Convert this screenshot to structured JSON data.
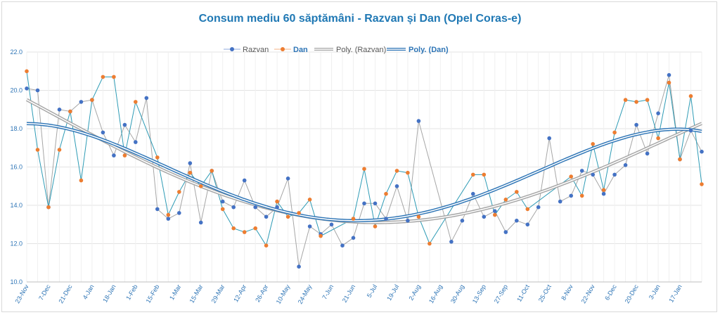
{
  "chart_data": {
    "type": "line",
    "title": "Consum mediu 60 săptămâni - Razvan și Dan (Opel Coras-e)",
    "ylim": [
      10,
      22
    ],
    "yticks": [
      "10.0",
      "12.0",
      "14.0",
      "16.0",
      "18.0",
      "20.0",
      "22.0"
    ],
    "grid": true,
    "legend_position": "top",
    "legend": {
      "razvan": "Razvan",
      "dan": "Dan",
      "poly_razvan": "Poly. (Razvan)",
      "poly_dan": "Poly. (Dan)"
    },
    "x_labels": [
      "23-Nov",
      "7-Dec",
      "21-Dec",
      "4-Jan",
      "18-Jan",
      "1-Feb",
      "15-Feb",
      "1-Mar",
      "15-Mar",
      "29-Mar",
      "12-Apr",
      "26-Apr",
      "10-May",
      "24-May",
      "7-Jun",
      "21-Jun",
      "5-Jul",
      "19-Jul",
      "2-Aug",
      "16-Aug",
      "30-Aug",
      "13-Sep",
      "27-Sep",
      "11-Oct",
      "25-Oct",
      "8-Nov",
      "22-Nov",
      "6-Dec",
      "20-Dec",
      "3-Jan",
      "17-Jan"
    ],
    "colors": {
      "razvan": "#4472c4",
      "dan": "#ed7d31",
      "razvan_line": "#a6a6a6",
      "dan_line": "#2e9bb5",
      "poly_dan": "#2e75b6",
      "poly_razvan": "#bfbfbf"
    },
    "series": [
      {
        "name": "Razvan",
        "values": [
          20.1,
          20.0,
          13.9,
          19.0,
          18.9,
          19.4,
          19.5,
          17.8,
          16.6,
          18.2,
          17.3,
          19.6,
          13.8,
          13.3,
          13.6,
          16.2,
          13.1,
          15.8,
          14.2,
          13.9,
          15.3,
          13.9,
          13.4,
          13.9,
          15.4,
          10.8,
          12.9,
          12.5,
          13.0,
          11.9,
          12.3,
          14.1,
          14.1,
          13.3,
          15.0,
          13.2,
          18.4,
          null,
          null,
          12.1,
          13.2,
          14.6,
          13.4,
          13.7,
          12.6,
          13.2,
          13.0,
          13.9,
          17.5,
          14.2,
          14.5,
          15.8,
          15.6,
          14.6,
          15.6,
          16.1,
          18.2,
          16.7,
          18.8,
          20.8,
          16.4,
          17.9,
          16.8
        ]
      },
      {
        "name": "Dan",
        "values": [
          21.0,
          16.9,
          13.9,
          16.9,
          18.9,
          15.3,
          19.5,
          20.7,
          20.7,
          16.6,
          19.4,
          null,
          16.5,
          13.5,
          14.7,
          15.7,
          15.0,
          15.8,
          13.8,
          12.8,
          12.6,
          12.8,
          11.9,
          14.2,
          13.4,
          13.6,
          14.3,
          12.4,
          null,
          null,
          13.3,
          15.9,
          12.9,
          14.6,
          15.8,
          15.7,
          13.4,
          12.0,
          null,
          null,
          null,
          15.6,
          15.6,
          13.5,
          14.3,
          14.7,
          13.8,
          null,
          null,
          null,
          15.5,
          14.5,
          17.2,
          14.8,
          17.8,
          19.5,
          19.4,
          19.5,
          17.5,
          20.4,
          16.4,
          19.7,
          15.1
        ]
      }
    ]
  }
}
